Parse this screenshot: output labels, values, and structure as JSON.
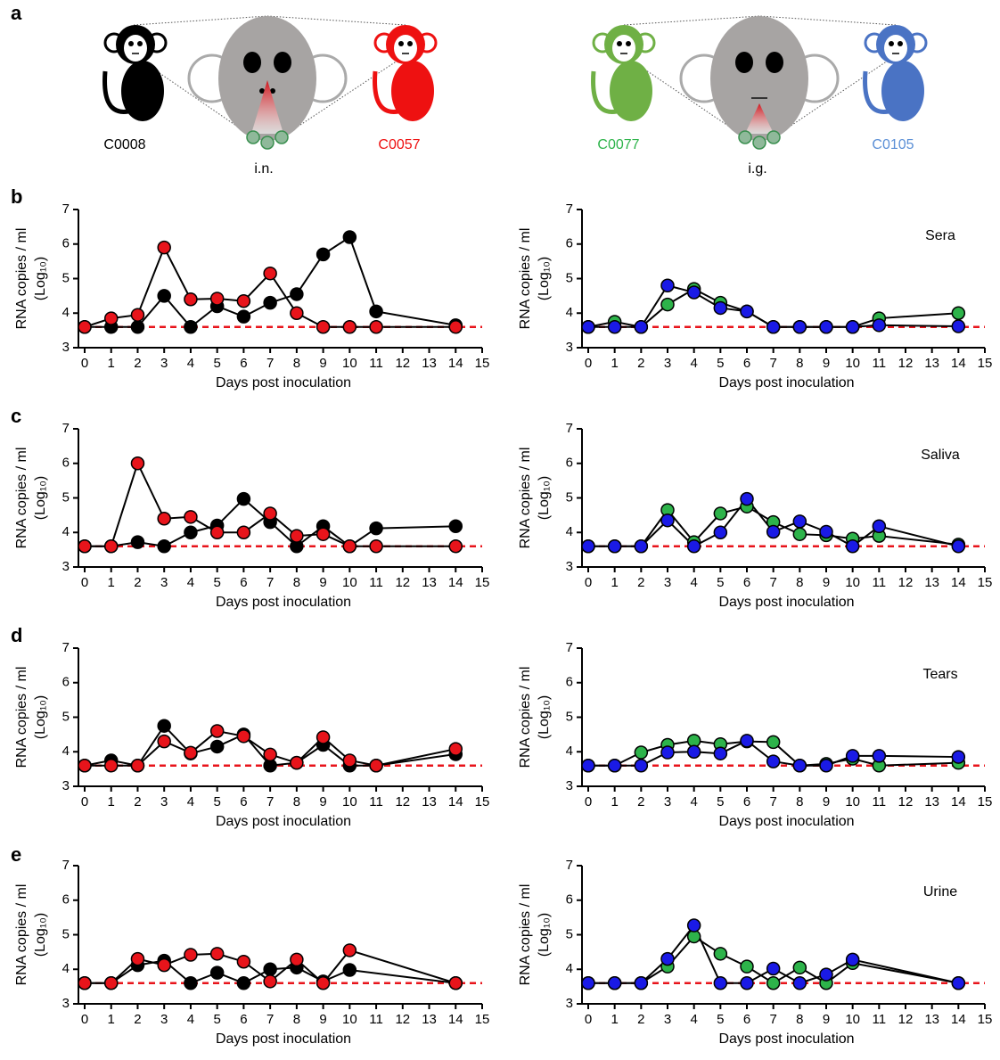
{
  "panel_labels": [
    "a",
    "b",
    "c",
    "d",
    "e"
  ],
  "illustration": {
    "left": {
      "animals": [
        "C0008",
        "C0057"
      ],
      "route": "i.n."
    },
    "right": {
      "animals": [
        "C0077",
        "C0105"
      ],
      "route": "i.g."
    }
  },
  "chart_data": [
    {
      "type": "line",
      "xlabel": "Days post inoculation",
      "ylabel": [
        "RNA copies / ml",
        "(Log₁₀)"
      ],
      "xlim": [
        0,
        15
      ],
      "xticks": [
        0,
        1,
        2,
        3,
        4,
        5,
        6,
        7,
        8,
        9,
        10,
        11,
        12,
        13,
        14,
        15
      ],
      "ylim": [
        3,
        7
      ],
      "yticks": [
        3,
        4,
        5,
        6,
        7
      ],
      "reference_line": {
        "value": 3.6,
        "color": "#e8141b"
      },
      "series": [
        {
          "color": "#000000",
          "x": [
            0,
            1,
            2,
            3,
            4,
            5,
            6,
            7,
            8,
            9,
            10,
            11,
            14
          ],
          "values": [
            3.6,
            3.6,
            3.6,
            4.5,
            3.6,
            4.2,
            3.9,
            4.3,
            4.55,
            5.7,
            6.2,
            4.05,
            3.65
          ]
        },
        {
          "color": "#e8141b",
          "x": [
            0,
            1,
            2,
            3,
            4,
            5,
            6,
            7,
            8,
            9,
            10,
            11,
            14
          ],
          "values": [
            3.6,
            3.85,
            3.95,
            5.9,
            4.4,
            4.42,
            4.35,
            5.15,
            4.0,
            3.6,
            3.6,
            3.6,
            3.6
          ]
        }
      ]
    },
    {
      "type": "line",
      "xlabel": "Days post inoculation",
      "ylabel": [
        "RNA copies / ml",
        "(Log₁₀)"
      ],
      "annotation": "Sera",
      "xlim": [
        0,
        15
      ],
      "xticks": [
        0,
        1,
        2,
        3,
        4,
        5,
        6,
        7,
        8,
        9,
        10,
        11,
        12,
        13,
        14,
        15
      ],
      "ylim": [
        3,
        7
      ],
      "yticks": [
        3,
        4,
        5,
        6,
        7
      ],
      "reference_line": {
        "value": 3.6,
        "color": "#e8141b"
      },
      "series": [
        {
          "color": "#2db34a",
          "x": [
            0,
            1,
            2,
            3,
            4,
            5,
            6,
            7,
            8,
            9,
            10,
            11,
            14
          ],
          "values": [
            3.6,
            3.75,
            3.6,
            4.25,
            4.7,
            4.3,
            4.05,
            3.6,
            3.6,
            3.6,
            3.6,
            3.85,
            4.0
          ]
        },
        {
          "color": "#1a1ae6",
          "x": [
            0,
            1,
            2,
            3,
            4,
            5,
            6,
            7,
            8,
            9,
            10,
            11,
            14
          ],
          "values": [
            3.6,
            3.6,
            3.6,
            4.8,
            4.6,
            4.15,
            4.05,
            3.6,
            3.6,
            3.6,
            3.6,
            3.65,
            3.62
          ]
        }
      ]
    },
    {
      "type": "line",
      "xlabel": "Days post inoculation",
      "ylabel": [
        "RNA copies / ml",
        "(Log₁₀)"
      ],
      "xlim": [
        0,
        15
      ],
      "xticks": [
        0,
        1,
        2,
        3,
        4,
        5,
        6,
        7,
        8,
        9,
        10,
        11,
        12,
        13,
        14,
        15
      ],
      "ylim": [
        3,
        7
      ],
      "yticks": [
        3,
        4,
        5,
        6,
        7
      ],
      "reference_line": {
        "value": 3.6,
        "color": "#e8141b"
      },
      "series": [
        {
          "color": "#000000",
          "x": [
            0,
            1,
            2,
            3,
            4,
            5,
            6,
            7,
            8,
            9,
            10,
            11,
            14
          ],
          "values": [
            3.6,
            3.6,
            3.72,
            3.6,
            4.0,
            4.2,
            4.97,
            4.3,
            3.6,
            4.18,
            3.6,
            4.12,
            4.18
          ]
        },
        {
          "color": "#e8141b",
          "x": [
            0,
            1,
            2,
            3,
            4,
            5,
            6,
            7,
            8,
            9,
            10,
            11,
            14
          ],
          "values": [
            3.6,
            3.6,
            6.0,
            4.4,
            4.45,
            4.0,
            4.0,
            4.55,
            3.9,
            3.95,
            3.6,
            3.6,
            3.6
          ]
        }
      ]
    },
    {
      "type": "line",
      "xlabel": "Days post inoculation",
      "ylabel": [
        "RNA copies / ml",
        "(Log₁₀)"
      ],
      "annotation": "Saliva",
      "xlim": [
        0,
        15
      ],
      "xticks": [
        0,
        1,
        2,
        3,
        4,
        5,
        6,
        7,
        8,
        9,
        10,
        11,
        12,
        13,
        14,
        15
      ],
      "ylim": [
        3,
        7
      ],
      "yticks": [
        3,
        4,
        5,
        6,
        7
      ],
      "reference_line": {
        "value": 3.6,
        "color": "#e8141b"
      },
      "series": [
        {
          "color": "#2db34a",
          "x": [
            0,
            1,
            2,
            3,
            4,
            5,
            6,
            7,
            8,
            9,
            10,
            11,
            14
          ],
          "values": [
            3.6,
            3.6,
            3.6,
            4.65,
            3.72,
            4.55,
            4.75,
            4.3,
            3.95,
            3.92,
            3.82,
            3.9,
            3.65
          ]
        },
        {
          "color": "#1a1ae6",
          "x": [
            0,
            1,
            2,
            3,
            4,
            5,
            6,
            7,
            8,
            9,
            10,
            11,
            14
          ],
          "values": [
            3.6,
            3.6,
            3.6,
            4.35,
            3.6,
            4.0,
            4.97,
            4.02,
            4.32,
            4.02,
            3.6,
            4.18,
            3.6
          ]
        }
      ]
    },
    {
      "type": "line",
      "xlabel": "Days post inoculation",
      "ylabel": [
        "RNA copies / ml",
        "(Log₁₀)"
      ],
      "xlim": [
        0,
        15
      ],
      "xticks": [
        0,
        1,
        2,
        3,
        4,
        5,
        6,
        7,
        8,
        9,
        10,
        11,
        12,
        13,
        14,
        15
      ],
      "ylim": [
        3,
        7
      ],
      "yticks": [
        3,
        4,
        5,
        6,
        7
      ],
      "reference_line": {
        "value": 3.6,
        "color": "#e8141b"
      },
      "series": [
        {
          "color": "#000000",
          "x": [
            0,
            1,
            2,
            3,
            4,
            5,
            6,
            7,
            8,
            9,
            10,
            11,
            14
          ],
          "values": [
            3.6,
            3.75,
            3.6,
            4.75,
            3.95,
            4.15,
            4.5,
            3.6,
            3.68,
            4.2,
            3.6,
            3.6,
            3.93
          ]
        },
        {
          "color": "#e8141b",
          "x": [
            0,
            1,
            2,
            3,
            4,
            5,
            6,
            7,
            8,
            9,
            10,
            11,
            14
          ],
          "values": [
            3.6,
            3.6,
            3.6,
            4.3,
            3.97,
            4.6,
            4.45,
            3.92,
            3.68,
            4.42,
            3.75,
            3.6,
            4.08
          ]
        }
      ]
    },
    {
      "type": "line",
      "xlabel": "Days post inoculation",
      "ylabel": [
        "RNA copies / ml",
        "(Log₁₀)"
      ],
      "annotation": "Tears",
      "xlim": [
        0,
        15
      ],
      "xticks": [
        0,
        1,
        2,
        3,
        4,
        5,
        6,
        7,
        8,
        9,
        10,
        11,
        12,
        13,
        14,
        15
      ],
      "ylim": [
        3,
        7
      ],
      "yticks": [
        3,
        4,
        5,
        6,
        7
      ],
      "reference_line": {
        "value": 3.6,
        "color": "#e8141b"
      },
      "series": [
        {
          "color": "#2db34a",
          "x": [
            0,
            1,
            2,
            3,
            4,
            5,
            6,
            7,
            8,
            9,
            10,
            11,
            14
          ],
          "values": [
            3.6,
            3.6,
            3.98,
            4.2,
            4.32,
            4.22,
            4.3,
            4.28,
            3.6,
            3.65,
            3.8,
            3.6,
            3.68
          ]
        },
        {
          "color": "#1a1ae6",
          "x": [
            0,
            1,
            2,
            3,
            4,
            5,
            6,
            7,
            8,
            9,
            10,
            11,
            14
          ],
          "values": [
            3.6,
            3.6,
            3.6,
            3.98,
            4.0,
            3.95,
            4.32,
            3.72,
            3.6,
            3.6,
            3.88,
            3.88,
            3.85
          ]
        }
      ]
    },
    {
      "type": "line",
      "xlabel": "Days post inoculation",
      "ylabel": [
        "RNA copies / ml",
        "(Log₁₀)"
      ],
      "xlim": [
        0,
        15
      ],
      "xticks": [
        0,
        1,
        2,
        3,
        4,
        5,
        6,
        7,
        8,
        9,
        10,
        11,
        12,
        13,
        14,
        15
      ],
      "ylim": [
        3,
        7
      ],
      "yticks": [
        3,
        4,
        5,
        6,
        7
      ],
      "reference_line": {
        "value": 3.6,
        "color": "#e8141b"
      },
      "series": [
        {
          "color": "#000000",
          "x": [
            0,
            1,
            2,
            3,
            4,
            5,
            6,
            7,
            8,
            9,
            10,
            14
          ],
          "values": [
            3.6,
            3.6,
            4.12,
            4.25,
            3.6,
            3.9,
            3.6,
            4.0,
            4.05,
            3.65,
            3.98,
            3.6
          ]
        },
        {
          "color": "#e8141b",
          "x": [
            0,
            1,
            2,
            3,
            4,
            5,
            6,
            7,
            8,
            9,
            10,
            14
          ],
          "values": [
            3.6,
            3.6,
            4.3,
            4.12,
            4.42,
            4.45,
            4.22,
            3.65,
            4.28,
            3.6,
            4.55,
            3.6
          ]
        }
      ]
    },
    {
      "type": "line",
      "xlabel": "Days post inoculation",
      "ylabel": [
        "RNA copies / ml",
        "(Log₁₀)"
      ],
      "annotation": "Urine",
      "xlim": [
        0,
        15
      ],
      "xticks": [
        0,
        1,
        2,
        3,
        4,
        5,
        6,
        7,
        8,
        9,
        10,
        11,
        12,
        13,
        14,
        15
      ],
      "ylim": [
        3,
        7
      ],
      "yticks": [
        3,
        4,
        5,
        6,
        7
      ],
      "reference_line": {
        "value": 3.6,
        "color": "#e8141b"
      },
      "series": [
        {
          "color": "#2db34a",
          "x": [
            0,
            1,
            2,
            3,
            4,
            5,
            6,
            7,
            8,
            9,
            10,
            14
          ],
          "values": [
            3.6,
            3.6,
            3.6,
            4.08,
            4.95,
            4.45,
            4.08,
            3.6,
            4.05,
            3.6,
            4.18,
            3.6
          ]
        },
        {
          "color": "#1a1ae6",
          "x": [
            0,
            1,
            2,
            3,
            4,
            5,
            6,
            7,
            8,
            9,
            10,
            14
          ],
          "values": [
            3.6,
            3.6,
            3.6,
            4.3,
            5.27,
            3.6,
            3.6,
            4.02,
            3.6,
            3.85,
            4.28,
            3.6
          ]
        }
      ]
    }
  ]
}
